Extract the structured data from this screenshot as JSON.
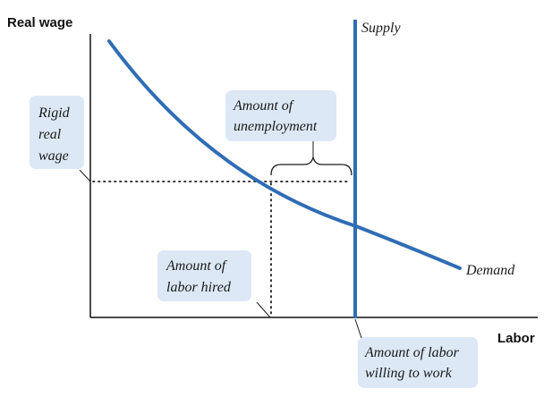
{
  "axes": {
    "y_title": "Real wage",
    "x_title": "Labor"
  },
  "curves": {
    "supply_label": "Supply",
    "demand_label": "Demand"
  },
  "callouts": {
    "rigid_wage": [
      "Rigid",
      "real",
      "wage"
    ],
    "unemployment": [
      "Amount of",
      "unemployment"
    ],
    "labor_hired": [
      "Amount of",
      "labor hired"
    ],
    "labor_willing": [
      "Amount of labor",
      "willing to work"
    ]
  },
  "colors": {
    "curve": "#2f6db5",
    "axis": "#111111",
    "callout_fill": "#dce8f5",
    "dotted": "#1a1a1a"
  }
}
